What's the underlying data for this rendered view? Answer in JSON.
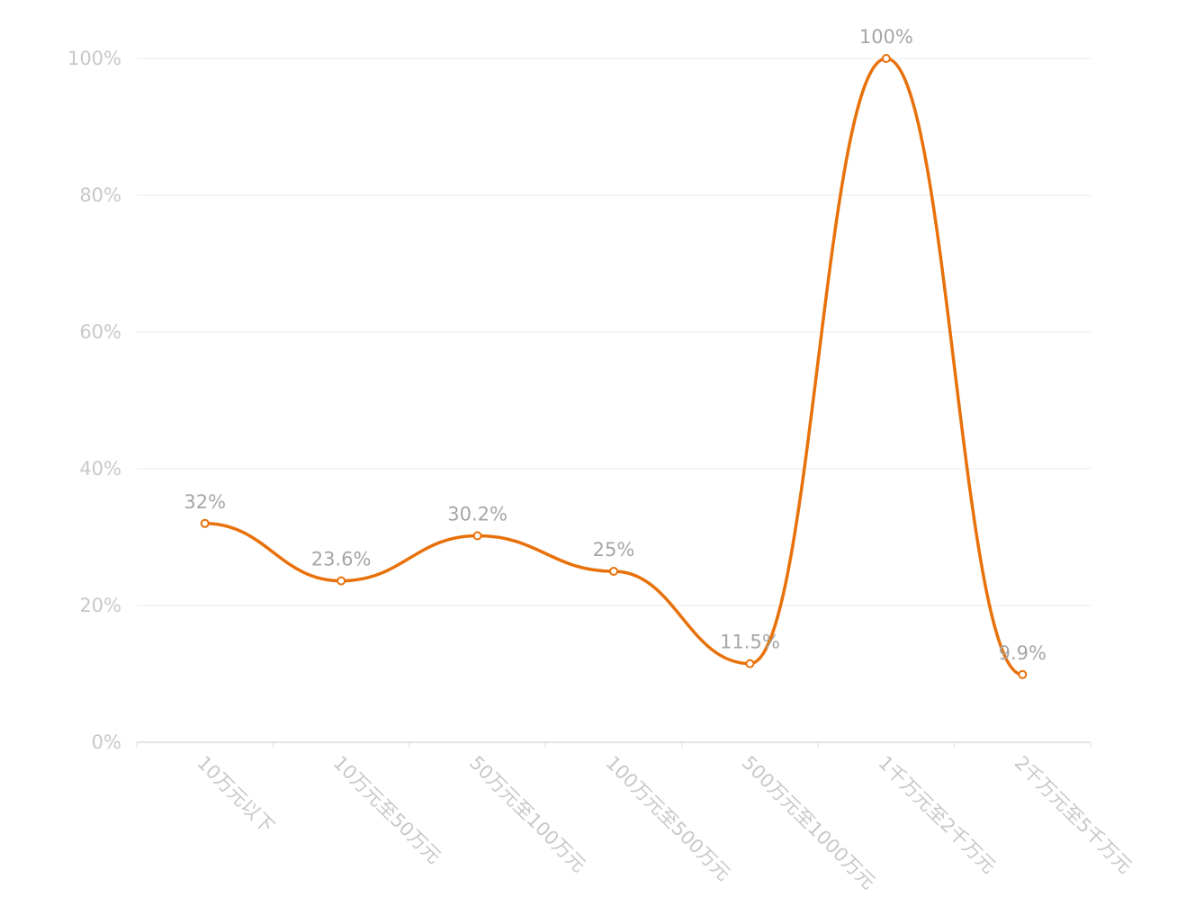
{
  "chart_data": {
    "type": "line",
    "smooth": true,
    "categories": [
      "10万元以下",
      "10万元至50万元",
      "50万元至100万元",
      "100万元至500万元",
      "500万元至1000万元",
      "1千万元至2千万元",
      "2千万元至5千万元"
    ],
    "series": [
      {
        "values": [
          32,
          23.6,
          30.2,
          25,
          11.5,
          100,
          9.9
        ]
      }
    ],
    "data_labels": [
      "32%",
      "23.6%",
      "30.2%",
      "25%",
      "11.5%",
      "100%",
      "9.9%"
    ],
    "y_ticks": [
      "0%",
      "20%",
      "40%",
      "60%",
      "80%",
      "100%"
    ],
    "ylim": [
      0,
      100
    ],
    "grid": true,
    "legend": "none",
    "colors": {
      "line": "#e8710a",
      "grid": "#ebebeb",
      "axis": "#dcdcdc",
      "tick_text": "#c8c8c8",
      "label_text": "#a6a6a6"
    }
  }
}
